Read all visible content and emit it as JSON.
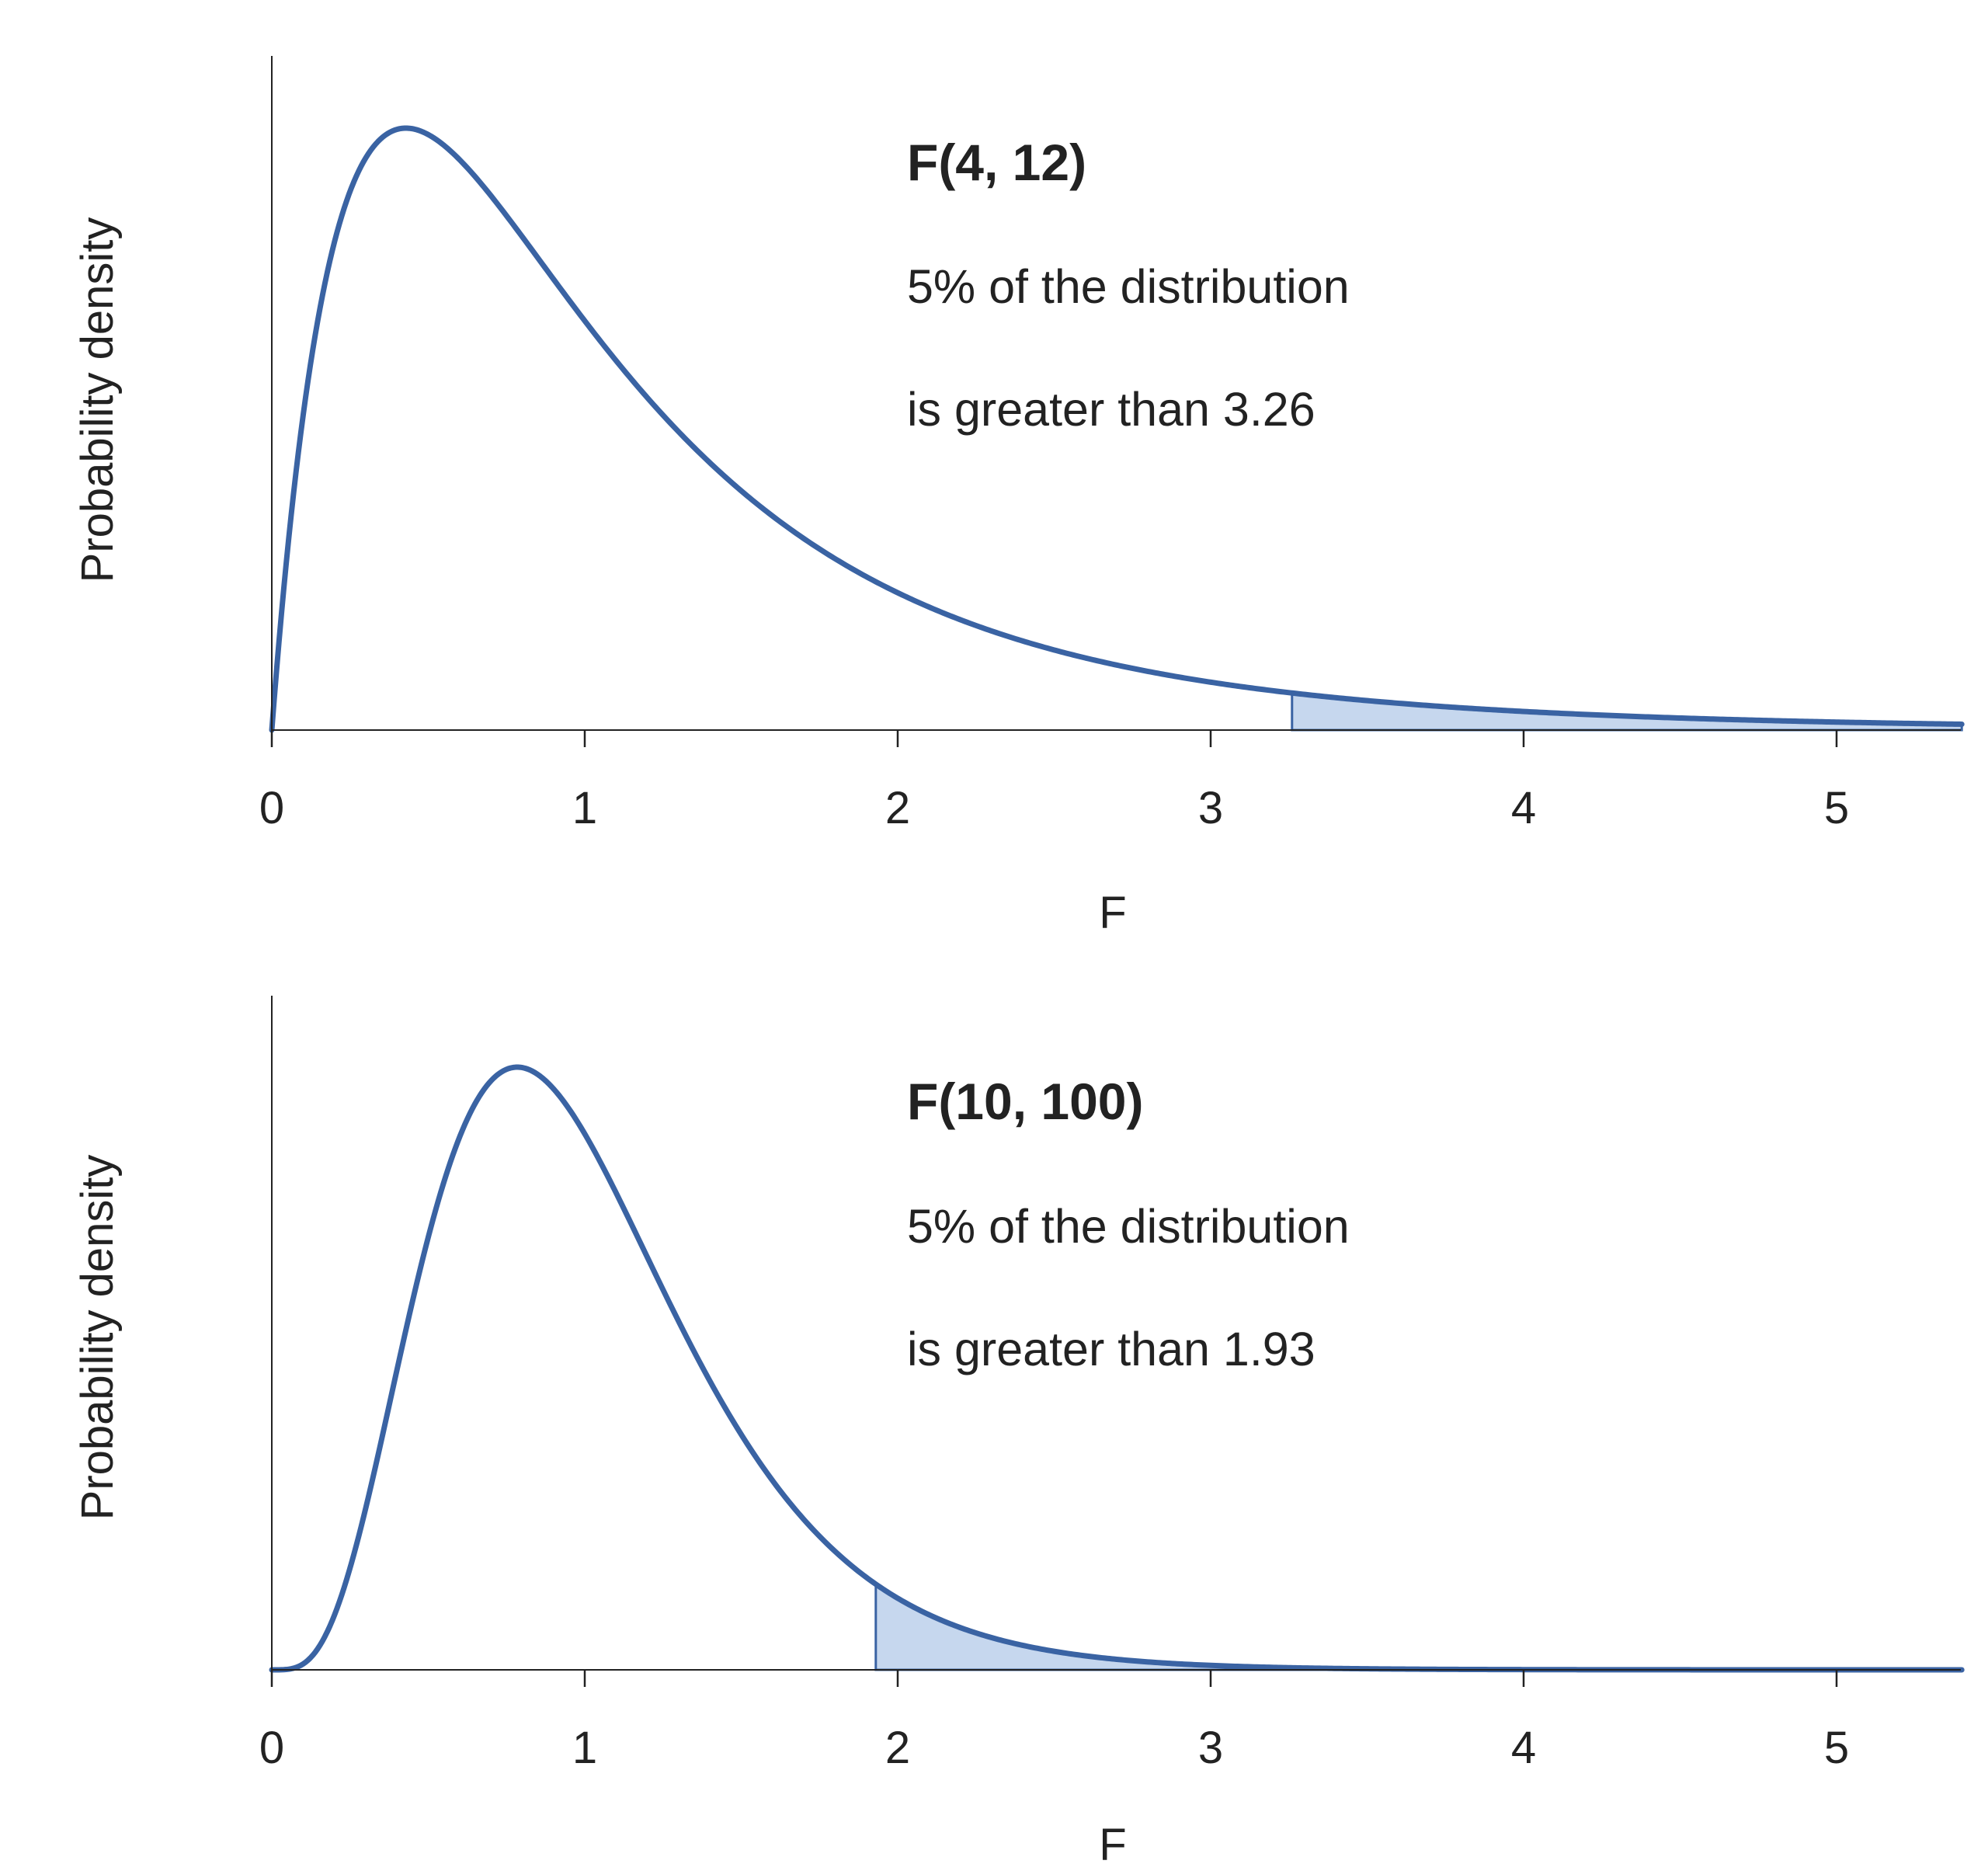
{
  "colors": {
    "curve": "#3a63a3",
    "tail_fill": "#c6d7ee",
    "axis": "#222222"
  },
  "chart_data": [
    {
      "type": "area",
      "distribution": "F",
      "df1": 4,
      "df2": 12,
      "critical_value": 3.26,
      "tail_area": 0.05,
      "xlim": [
        0,
        5.4
      ],
      "x_ticks": [
        "0",
        "1",
        "2",
        "3",
        "4",
        "5"
      ],
      "xlabel": "F",
      "ylabel": "Probability density",
      "title": "F(4, 12)",
      "annotation_lines": [
        "5% of the distribution",
        "is greater than 3.26"
      ],
      "y_ticks_shown": false,
      "grid": false
    },
    {
      "type": "area",
      "distribution": "F",
      "df1": 10,
      "df2": 100,
      "critical_value": 1.93,
      "tail_area": 0.05,
      "xlim": [
        0,
        5.4
      ],
      "x_ticks": [
        "0",
        "1",
        "2",
        "3",
        "4",
        "5"
      ],
      "xlabel": "F",
      "ylabel": "Probability density",
      "title": "F(10, 100)",
      "annotation_lines": [
        "5% of the distribution",
        "is greater than 1.93"
      ],
      "y_ticks_shown": false,
      "grid": false
    }
  ]
}
